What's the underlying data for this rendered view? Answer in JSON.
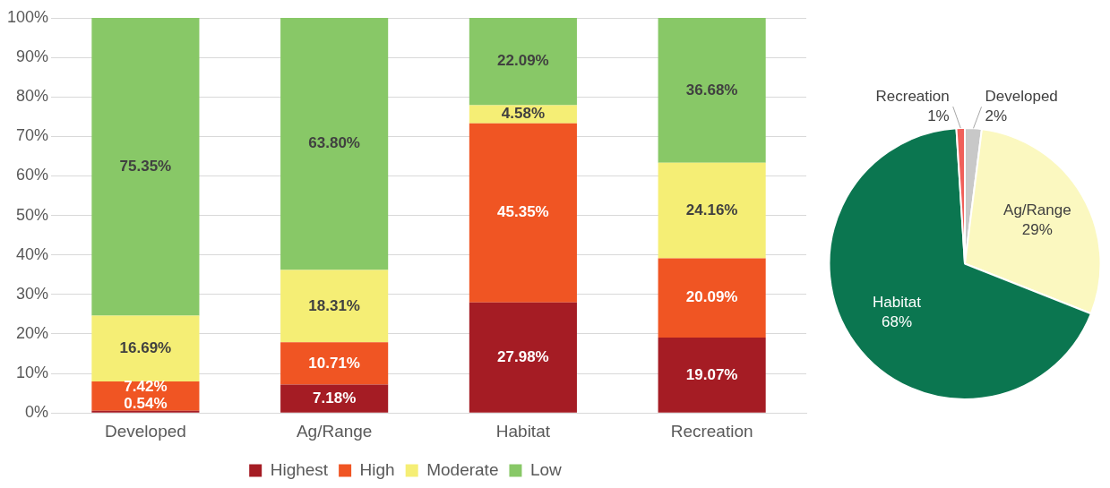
{
  "chart_data": [
    {
      "type": "bar",
      "stacked": true,
      "categories": [
        "Developed",
        "Ag/Range",
        "Habitat",
        "Recreation"
      ],
      "series": [
        {
          "name": "Highest",
          "color": "#a51c24",
          "values": [
            0.54,
            7.18,
            27.98,
            19.07
          ],
          "value_labels": [
            "0.54%",
            "7.18%",
            "27.98%",
            "19.07%"
          ]
        },
        {
          "name": "High",
          "color": "#f05523",
          "values": [
            7.42,
            10.71,
            45.35,
            20.09
          ],
          "value_labels": [
            "7.42%",
            "10.71%",
            "45.35%",
            "20.09%"
          ]
        },
        {
          "name": "Moderate",
          "color": "#f5ee75",
          "values": [
            16.69,
            18.31,
            4.58,
            24.16
          ],
          "value_labels": [
            "16.69%",
            "18.31%",
            "4.58%",
            "24.16%"
          ]
        },
        {
          "name": "Low",
          "color": "#88c867",
          "values": [
            75.35,
            63.8,
            22.09,
            36.68
          ],
          "value_labels": [
            "75.35%",
            "63.80%",
            "22.09%",
            "36.68%"
          ]
        }
      ],
      "ylim": [
        0,
        100
      ],
      "yticks": [
        {
          "value": 0,
          "label": "0%"
        },
        {
          "value": 10,
          "label": "10%"
        },
        {
          "value": 20,
          "label": "20%"
        },
        {
          "value": 30,
          "label": "30%"
        },
        {
          "value": 40,
          "label": "40%"
        },
        {
          "value": 50,
          "label": "50%"
        },
        {
          "value": 60,
          "label": "60%"
        },
        {
          "value": 70,
          "label": "70%"
        },
        {
          "value": 80,
          "label": "80%"
        },
        {
          "value": 90,
          "label": "90%"
        },
        {
          "value": 100,
          "label": "100%"
        }
      ],
      "grid": "y",
      "legend": "bottom"
    },
    {
      "type": "pie",
      "categories": [
        "Developed",
        "Ag/Range",
        "Habitat",
        "Recreation"
      ],
      "values": [
        2,
        29,
        68,
        1
      ],
      "colors": [
        "#c8c8c8",
        "#fbf8c0",
        "#0b7650",
        "#f0605a"
      ],
      "value_labels": [
        "2%",
        "29%",
        "68%",
        "1%"
      ],
      "legend": false
    }
  ]
}
